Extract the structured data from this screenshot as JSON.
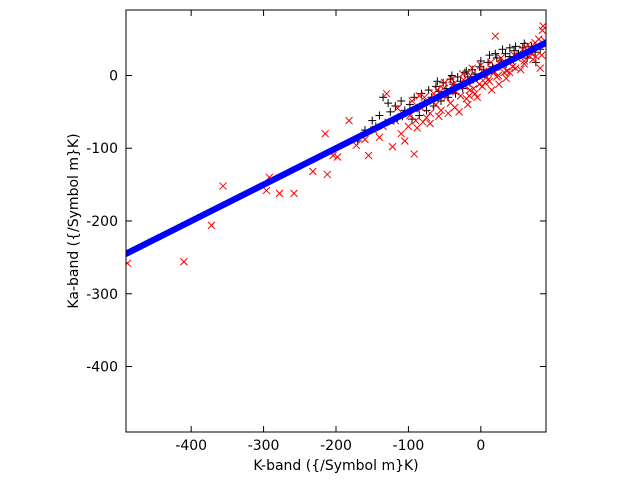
{
  "chart_data": {
    "type": "scatter",
    "title": "",
    "xlabel": "K-band ({/Symbol m}K)",
    "ylabel": "Ka-band ({/Symbol m}K)",
    "xlim": [
      -490,
      90
    ],
    "ylim": [
      -490,
      90
    ],
    "xticks": [
      -400,
      -300,
      -200,
      -100,
      0
    ],
    "yticks": [
      -400,
      -300,
      -200,
      -100,
      0
    ],
    "grid": false,
    "legend": "none",
    "series": [
      {
        "marker": "plus",
        "color": "#000000",
        "points": [
          [
            -135,
            -30
          ],
          [
            -128,
            -38
          ],
          [
            -118,
            -42
          ],
          [
            -110,
            -35
          ],
          [
            -105,
            -48
          ],
          [
            -98,
            -40
          ],
          [
            -92,
            -30
          ],
          [
            -88,
            -45
          ],
          [
            -82,
            -25
          ],
          [
            -78,
            -38
          ],
          [
            -72,
            -20
          ],
          [
            -68,
            -30
          ],
          [
            -62,
            -15
          ],
          [
            -58,
            -22
          ],
          [
            -52,
            -10
          ],
          [
            -48,
            -18
          ],
          [
            -42,
            -5
          ],
          [
            -38,
            -12
          ],
          [
            -32,
            -2
          ],
          [
            -28,
            -8
          ],
          [
            -22,
            4
          ],
          [
            -18,
            -2
          ],
          [
            -12,
            8
          ],
          [
            -8,
            2
          ],
          [
            -2,
            12
          ],
          [
            4,
            8
          ],
          [
            10,
            18
          ],
          [
            16,
            12
          ],
          [
            22,
            24
          ],
          [
            28,
            20
          ],
          [
            34,
            30
          ],
          [
            40,
            26
          ],
          [
            46,
            34
          ],
          [
            52,
            30
          ],
          [
            58,
            38
          ],
          [
            64,
            24
          ],
          [
            70,
            40
          ],
          [
            76,
            18
          ],
          [
            82,
            36
          ],
          [
            -150,
            -62
          ],
          [
            -140,
            -55
          ],
          [
            -125,
            -50
          ],
          [
            -115,
            -58
          ],
          [
            -95,
            -60
          ],
          [
            -85,
            -55
          ],
          [
            -75,
            -48
          ],
          [
            -65,
            -42
          ],
          [
            -55,
            -35
          ],
          [
            -45,
            -30
          ],
          [
            -35,
            -25
          ],
          [
            -25,
            -18
          ],
          [
            -15,
            -10
          ],
          [
            -5,
            -4
          ],
          [
            5,
            2
          ],
          [
            15,
            6
          ],
          [
            25,
            12
          ],
          [
            35,
            16
          ],
          [
            45,
            22
          ],
          [
            55,
            28
          ],
          [
            65,
            30
          ],
          [
            75,
            32
          ],
          [
            -160,
            -75
          ],
          [
            -170,
            -90
          ],
          [
            -145,
            -70
          ],
          [
            -132,
            -65
          ],
          [
            -120,
            -62
          ],
          [
            -108,
            -56
          ],
          [
            0,
            20
          ],
          [
            12,
            28
          ],
          [
            30,
            36
          ],
          [
            48,
            40
          ],
          [
            60,
            44
          ],
          [
            -60,
            -8
          ],
          [
            -40,
            0
          ],
          [
            -20,
            6
          ],
          [
            20,
            30
          ],
          [
            40,
            38
          ]
        ]
      },
      {
        "marker": "cross",
        "color": "#ff0000",
        "points": [
          [
            -488,
            -258
          ],
          [
            -410,
            -256
          ],
          [
            -372,
            -206
          ],
          [
            -356,
            -152
          ],
          [
            -296,
            -158
          ],
          [
            -292,
            -140
          ],
          [
            -278,
            -162
          ],
          [
            -258,
            -162
          ],
          [
            -232,
            -132
          ],
          [
            -215,
            -80
          ],
          [
            -212,
            -136
          ],
          [
            -204,
            -110
          ],
          [
            -198,
            -112
          ],
          [
            -182,
            -62
          ],
          [
            -172,
            -96
          ],
          [
            -160,
            -88
          ],
          [
            -155,
            -110
          ],
          [
            -148,
            -75
          ],
          [
            -140,
            -85
          ],
          [
            -135,
            -70
          ],
          [
            -130,
            -25
          ],
          [
            -122,
            -98
          ],
          [
            -118,
            -62
          ],
          [
            -110,
            -80
          ],
          [
            -105,
            -90
          ],
          [
            -98,
            -55
          ],
          [
            -92,
            -108
          ],
          [
            -88,
            -72
          ],
          [
            -82,
            -45
          ],
          [
            -75,
            -58
          ],
          [
            -70,
            -52
          ],
          [
            -62,
            -40
          ],
          [
            -55,
            -48
          ],
          [
            -48,
            -30
          ],
          [
            -42,
            -38
          ],
          [
            -35,
            -22
          ],
          [
            -28,
            -28
          ],
          [
            -22,
            -15
          ],
          [
            -15,
            -20
          ],
          [
            -8,
            -6
          ],
          [
            -2,
            -12
          ],
          [
            5,
            2
          ],
          [
            10,
            -6
          ],
          [
            16,
            8
          ],
          [
            20,
            54
          ],
          [
            24,
            0
          ],
          [
            30,
            14
          ],
          [
            36,
            6
          ],
          [
            42,
            20
          ],
          [
            48,
            10
          ],
          [
            54,
            26
          ],
          [
            60,
            16
          ],
          [
            66,
            32
          ],
          [
            72,
            22
          ],
          [
            78,
            40
          ],
          [
            84,
            28
          ],
          [
            88,
            48
          ],
          [
            86,
            68
          ],
          [
            85,
            62
          ],
          [
            82,
            10
          ],
          [
            80,
            50
          ],
          [
            75,
            45
          ],
          [
            70,
            30
          ],
          [
            65,
            42
          ],
          [
            58,
            36
          ],
          [
            -30,
            -50
          ],
          [
            -18,
            -40
          ],
          [
            -8,
            -25
          ],
          [
            2,
            -15
          ],
          [
            12,
            -8
          ],
          [
            22,
            -2
          ],
          [
            32,
            4
          ],
          [
            44,
            12
          ],
          [
            -60,
            -20
          ],
          [
            -50,
            -10
          ],
          [
            -40,
            -5
          ],
          [
            -25,
            2
          ],
          [
            -12,
            10
          ],
          [
            0,
            14
          ],
          [
            14,
            18
          ],
          [
            28,
            24
          ],
          [
            -95,
            -35
          ],
          [
            -85,
            -28
          ],
          [
            -115,
            -45
          ],
          [
            -20,
            -32
          ],
          [
            -10,
            -18
          ],
          [
            8,
            -2
          ],
          [
            18,
            4
          ],
          [
            38,
            18
          ],
          [
            50,
            24
          ],
          [
            62,
            30
          ],
          [
            -70,
            -66
          ],
          [
            -45,
            -52
          ],
          [
            -5,
            -30
          ],
          [
            15,
            -20
          ],
          [
            25,
            -12
          ],
          [
            35,
            -4
          ],
          [
            55,
            8
          ],
          [
            -78,
            -30
          ],
          [
            -65,
            -25
          ],
          [
            -52,
            -18
          ],
          [
            -38,
            -12
          ],
          [
            -24,
            -6
          ],
          [
            -14,
            0
          ],
          [
            4,
            6
          ],
          [
            26,
            16
          ],
          [
            46,
            28
          ],
          [
            68,
            36
          ],
          [
            -100,
            -70
          ],
          [
            -90,
            -62
          ],
          [
            -80,
            -64
          ],
          [
            -58,
            -56
          ],
          [
            -36,
            -44
          ],
          [
            -16,
            -28
          ],
          [
            6,
            -10
          ],
          [
            40,
            4
          ],
          [
            60,
            20
          ],
          [
            76,
            26
          ]
        ]
      },
      {
        "marker": "circle",
        "color": "#0000ff",
        "fit": {
          "slope": 0.5,
          "intercept": 0
        },
        "x_range": [
          -490,
          90
        ]
      }
    ]
  }
}
